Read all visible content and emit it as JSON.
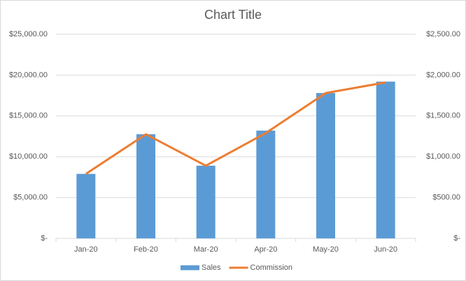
{
  "chart_data": {
    "type": "combo",
    "title": "Chart Title",
    "categories": [
      "Jan-20",
      "Feb-20",
      "Mar-20",
      "Apr-20",
      "May-20",
      "Jun-20"
    ],
    "series": [
      {
        "name": "Sales",
        "type": "bar",
        "color": "#5b9bd5",
        "values": [
          7900,
          12750,
          8900,
          13200,
          17800,
          19200
        ]
      },
      {
        "name": "Commission",
        "type": "line",
        "axis": "y2",
        "color": "#ed7d31",
        "values": [
          790,
          1275,
          890,
          1290,
          1780,
          1910
        ]
      }
    ],
    "ylim": [
      0,
      25000
    ],
    "yticks": [
      {
        "value": 0,
        "label": "$-"
      },
      {
        "value": 5000,
        "label": "$5,000.00"
      },
      {
        "value": 10000,
        "label": "$10,000.00"
      },
      {
        "value": 15000,
        "label": "$15,000.00"
      },
      {
        "value": 20000,
        "label": "$20,000.00"
      },
      {
        "value": 25000,
        "label": "$25,000.00"
      }
    ],
    "y2lim": [
      0,
      2500
    ],
    "y2ticks": [
      {
        "value": 0,
        "label": "$-"
      },
      {
        "value": 500,
        "label": "$500.00"
      },
      {
        "value": 1000,
        "label": "$1,000.00"
      },
      {
        "value": 1500,
        "label": "$1,500.00"
      },
      {
        "value": 2000,
        "label": "$2,000.00"
      },
      {
        "value": 2500,
        "label": "$2,500.00"
      }
    ],
    "grid": true,
    "legend": "bottom"
  }
}
